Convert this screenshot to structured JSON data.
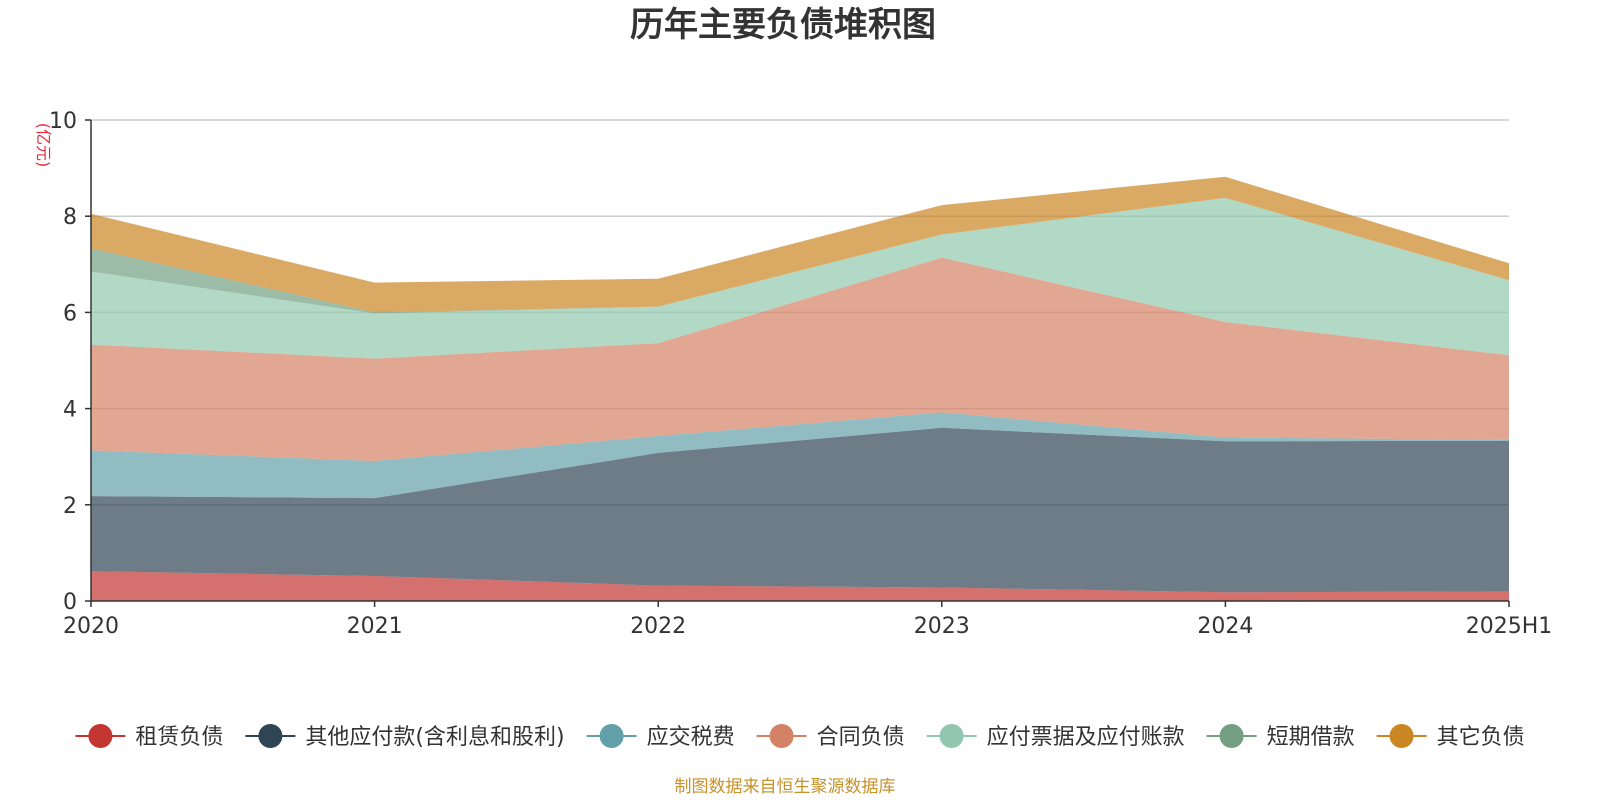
{
  "chart_data": {
    "type": "area",
    "stacked": true,
    "title": "历年主要负债堆积图",
    "unit_label": "(亿元)",
    "x": [
      "2020",
      "2021",
      "2022",
      "2023",
      "2024",
      "2025H1"
    ],
    "ylim": [
      0,
      10
    ],
    "yticks": [
      "0",
      "2",
      "4",
      "6",
      "8",
      "10"
    ],
    "grid": true,
    "legend_position": "bottom",
    "series": [
      {
        "name": "租赁负债",
        "color": "#c23531",
        "values": [
          0.62,
          0.52,
          0.32,
          0.28,
          0.18,
          0.2
        ]
      },
      {
        "name": "其他应付款(含利息和股利)",
        "color": "#2f4554",
        "values": [
          1.56,
          1.62,
          2.76,
          3.32,
          3.14,
          3.13
        ]
      },
      {
        "name": "应交税费",
        "color": "#61a0a8",
        "values": [
          0.95,
          0.77,
          0.35,
          0.32,
          0.08,
          0.02
        ]
      },
      {
        "name": "合同负债",
        "color": "#d48265",
        "values": [
          2.2,
          2.13,
          1.93,
          3.22,
          2.4,
          1.76
        ]
      },
      {
        "name": "应付票据及应付账款",
        "color": "#91c7ae",
        "values": [
          1.52,
          0.94,
          0.76,
          0.48,
          2.58,
          1.56
        ]
      },
      {
        "name": "短期借款",
        "color": "#749f83",
        "values": [
          0.48,
          0.02,
          0.0,
          0.0,
          0.0,
          0.0
        ]
      },
      {
        "name": "其它负债",
        "color": "#ca8622",
        "values": [
          0.72,
          0.62,
          0.58,
          0.61,
          0.44,
          0.35
        ]
      }
    ],
    "source": "制图数据来自恒生聚源数据库"
  }
}
